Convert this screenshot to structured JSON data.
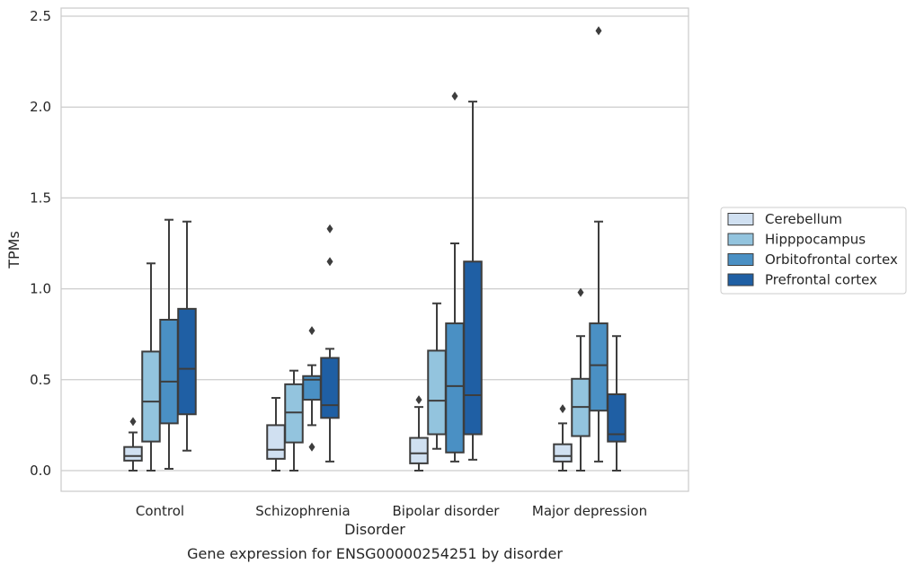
{
  "chart_data": {
    "type": "box",
    "caption": "Gene expression for ENSG00000254251 by disorder",
    "xlabel": "Disorder",
    "ylabel": "TPMs",
    "ylim": [
      -0.12,
      2.55
    ],
    "yticks": [
      0.0,
      0.5,
      1.0,
      1.5,
      2.0,
      2.5
    ],
    "ytick_labels": [
      "0.0",
      "0.5",
      "1.0",
      "1.5",
      "2.0",
      "2.5"
    ],
    "grid": "horizontal",
    "legend_position": "right",
    "categories": [
      "Control",
      "Schizophrenia",
      "Bipolar disorder",
      "Major depression"
    ],
    "series": [
      {
        "name": "Cerebellum",
        "color": "#d0e0f1",
        "boxes": [
          {
            "whislo": 0.0,
            "q1": 0.055,
            "med": 0.08,
            "q3": 0.13,
            "whishi": 0.21,
            "fliers": [
              0.27
            ]
          },
          {
            "whislo": 0.0,
            "q1": 0.065,
            "med": 0.115,
            "q3": 0.25,
            "whishi": 0.4,
            "fliers": []
          },
          {
            "whislo": 0.0,
            "q1": 0.04,
            "med": 0.095,
            "q3": 0.18,
            "whishi": 0.35,
            "fliers": [
              0.39
            ]
          },
          {
            "whislo": 0.0,
            "q1": 0.05,
            "med": 0.08,
            "q3": 0.145,
            "whishi": 0.26,
            "fliers": [
              0.34
            ]
          }
        ]
      },
      {
        "name": "Hipppocampus",
        "color": "#93c4de",
        "boxes": [
          {
            "whislo": 0.0,
            "q1": 0.16,
            "med": 0.38,
            "q3": 0.655,
            "whishi": 1.14,
            "fliers": []
          },
          {
            "whislo": 0.0,
            "q1": 0.155,
            "med": 0.32,
            "q3": 0.475,
            "whishi": 0.55,
            "fliers": []
          },
          {
            "whislo": 0.12,
            "q1": 0.2,
            "med": 0.385,
            "q3": 0.66,
            "whishi": 0.92,
            "fliers": []
          },
          {
            "whislo": 0.0,
            "q1": 0.19,
            "med": 0.35,
            "q3": 0.505,
            "whishi": 0.74,
            "fliers": [
              0.98
            ]
          }
        ]
      },
      {
        "name": "Orbitofrontal cortex",
        "color": "#4a90c4",
        "boxes": [
          {
            "whislo": 0.01,
            "q1": 0.26,
            "med": 0.49,
            "q3": 0.83,
            "whishi": 1.38,
            "fliers": []
          },
          {
            "whislo": 0.25,
            "q1": 0.39,
            "med": 0.5,
            "q3": 0.52,
            "whishi": 0.58,
            "fliers": [
              0.13,
              0.77
            ]
          },
          {
            "whislo": 0.05,
            "q1": 0.1,
            "med": 0.465,
            "q3": 0.81,
            "whishi": 1.25,
            "fliers": [
              2.06
            ]
          },
          {
            "whislo": 0.05,
            "q1": 0.33,
            "med": 0.58,
            "q3": 0.81,
            "whishi": 1.37,
            "fliers": [
              2.42
            ]
          }
        ]
      },
      {
        "name": "Prefrontal cortex",
        "color": "#1f5fa4",
        "boxes": [
          {
            "whislo": 0.11,
            "q1": 0.31,
            "med": 0.56,
            "q3": 0.89,
            "whishi": 1.37,
            "fliers": []
          },
          {
            "whislo": 0.05,
            "q1": 0.29,
            "med": 0.36,
            "q3": 0.62,
            "whishi": 0.67,
            "fliers": [
              1.15,
              1.33
            ]
          },
          {
            "whislo": 0.06,
            "q1": 0.2,
            "med": 0.415,
            "q3": 1.15,
            "whishi": 2.03,
            "fliers": []
          },
          {
            "whislo": 0.0,
            "q1": 0.16,
            "med": 0.2,
            "q3": 0.42,
            "whishi": 0.74,
            "fliers": []
          }
        ]
      }
    ]
  }
}
